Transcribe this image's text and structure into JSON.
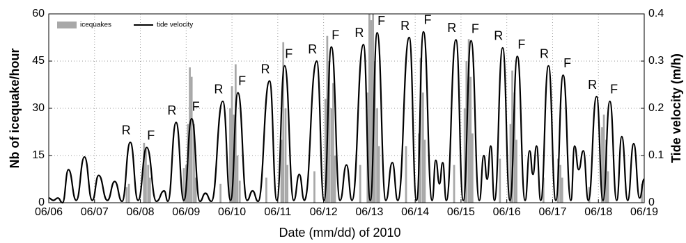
{
  "chart_data": {
    "type": "bar-line",
    "xlabel": "Date (mm/dd) of 2010",
    "ylabel": "Nb of icequake/hour",
    "y2label": "Tide velocity (m/h)",
    "xlim": [
      0,
      13
    ],
    "xticks": [
      {
        "value": 0,
        "label": "06/06"
      },
      {
        "value": 1,
        "label": "06/07"
      },
      {
        "value": 2,
        "label": "06/08"
      },
      {
        "value": 3,
        "label": "06/09"
      },
      {
        "value": 4,
        "label": "06/10"
      },
      {
        "value": 5,
        "label": "06/11"
      },
      {
        "value": 6,
        "label": "06/12"
      },
      {
        "value": 7,
        "label": "06/13"
      },
      {
        "value": 8,
        "label": "06/14"
      },
      {
        "value": 9,
        "label": "06/15"
      },
      {
        "value": 10,
        "label": "06/16"
      },
      {
        "value": 11,
        "label": "06/17"
      },
      {
        "value": 12,
        "label": "06/18"
      },
      {
        "value": 13,
        "label": "06/19"
      }
    ],
    "ylim": [
      0,
      60
    ],
    "yticks": [
      0,
      15,
      30,
      45,
      60
    ],
    "y2lim": [
      0,
      0.4
    ],
    "y2ticks": [
      0,
      0.1,
      0.2,
      0.3,
      0.4
    ],
    "grid": true,
    "legend": "upper left",
    "series": [
      {
        "name": "icequakes",
        "type": "bar",
        "color": "#a8a8a8",
        "x": [
          1.7,
          1.75,
          2.08,
          2.12,
          2.17,
          2.21,
          2.95,
          3.0,
          3.04,
          3.08,
          3.12,
          3.17,
          3.21,
          3.75,
          3.96,
          4.0,
          4.04,
          4.08,
          4.12,
          4.17,
          4.75,
          5.08,
          5.12,
          5.17,
          5.21,
          5.8,
          6.04,
          6.08,
          6.12,
          6.17,
          6.21,
          6.25,
          6.8,
          6.96,
          7.0,
          7.04,
          7.08,
          7.12,
          7.17,
          7.21,
          7.8,
          8.08,
          8.12,
          8.17,
          8.21,
          8.85,
          9.08,
          9.12,
          9.17,
          9.21,
          9.25,
          9.85,
          10.08,
          10.12,
          10.17,
          10.21,
          10.8,
          11.12,
          11.17,
          11.21,
          11.8,
          12.08,
          12.12,
          12.17,
          12.21,
          12.95
        ],
        "values": [
          5,
          6,
          19,
          17,
          12,
          8,
          11,
          12,
          25,
          43,
          40,
          25,
          8,
          6,
          30,
          37,
          28,
          44,
          15,
          7,
          8,
          20,
          51,
          30,
          12,
          10,
          33,
          53,
          45,
          30,
          38,
          15,
          12,
          35,
          60,
          58,
          60,
          45,
          30,
          18,
          18,
          22,
          46,
          35,
          20,
          12,
          30,
          45,
          52,
          40,
          22,
          14,
          25,
          42,
          35,
          20,
          8,
          14,
          12,
          8,
          5,
          24,
          28,
          20,
          10,
          6
        ]
      },
      {
        "name": "tide velocity",
        "type": "line",
        "axis": "y2",
        "color": "#000000",
        "x": [
          0,
          0.1,
          0.2,
          0.3,
          0.43,
          0.6,
          0.78,
          0.95,
          1.09,
          1.28,
          1.44,
          1.6,
          1.78,
          1.95,
          2.14,
          2.35,
          2.52,
          2.6,
          2.78,
          2.95,
          3.12,
          3.3,
          3.42,
          3.55,
          3.8,
          3.97,
          4.13,
          4.33,
          4.45,
          4.57,
          4.82,
          4.98,
          5.15,
          5.35,
          5.47,
          5.58,
          5.85,
          6.01,
          6.17,
          6.36,
          6.5,
          6.62,
          6.87,
          7.02,
          7.17,
          7.36,
          7.5,
          7.62,
          7.87,
          8.03,
          8.18,
          8.37,
          8.45,
          8.53,
          8.6,
          8.68,
          8.89,
          9.05,
          9.22,
          9.4,
          9.5,
          9.57,
          9.65,
          9.73,
          9.91,
          10.07,
          10.23,
          10.4,
          10.5,
          10.57,
          10.65,
          10.74,
          10.91,
          11.07,
          11.23,
          11.4,
          11.48,
          11.57,
          11.67,
          11.78,
          11.96,
          12.1,
          12.25,
          12.4,
          12.51,
          12.64,
          12.77,
          12.9,
          13
        ],
        "values": [
          0.01,
          0.005,
          0.01,
          0.0,
          0.07,
          0.005,
          0.097,
          0.005,
          0.058,
          0.005,
          0.045,
          0.003,
          0.128,
          0.005,
          0.117,
          0.003,
          0.025,
          0.003,
          0.17,
          0.005,
          0.178,
          0.003,
          0.02,
          0.003,
          0.215,
          0.005,
          0.233,
          0.005,
          0.025,
          0.003,
          0.258,
          0.005,
          0.29,
          0.005,
          0.06,
          0.005,
          0.3,
          0.005,
          0.33,
          0.005,
          0.08,
          0.005,
          0.335,
          0.005,
          0.36,
          0.005,
          0.085,
          0.005,
          0.35,
          0.005,
          0.362,
          0.005,
          0.09,
          0.04,
          0.085,
          0.005,
          0.345,
          0.005,
          0.343,
          0.005,
          0.1,
          0.05,
          0.12,
          0.005,
          0.328,
          0.005,
          0.31,
          0.005,
          0.11,
          0.06,
          0.12,
          0.005,
          0.29,
          0.005,
          0.27,
          0.005,
          0.12,
          0.07,
          0.11,
          0.005,
          0.225,
          0.005,
          0.215,
          0.005,
          0.14,
          0.005,
          0.125,
          0.01,
          0.05
        ]
      }
    ],
    "annotations": [
      {
        "text": "R",
        "x": 1.78
      },
      {
        "text": "F",
        "x": 2.14
      },
      {
        "text": "R",
        "x": 2.78
      },
      {
        "text": "F",
        "x": 3.12
      },
      {
        "text": "R",
        "x": 3.8
      },
      {
        "text": "F",
        "x": 4.13
      },
      {
        "text": "R",
        "x": 4.82
      },
      {
        "text": "F",
        "x": 5.15
      },
      {
        "text": "R",
        "x": 5.85
      },
      {
        "text": "F",
        "x": 6.17
      },
      {
        "text": "R",
        "x": 6.87
      },
      {
        "text": "F",
        "x": 7.17
      },
      {
        "text": "R",
        "x": 7.87
      },
      {
        "text": "F",
        "x": 8.18
      },
      {
        "text": "R",
        "x": 8.89
      },
      {
        "text": "F",
        "x": 9.22
      },
      {
        "text": "R",
        "x": 9.91
      },
      {
        "text": "F",
        "x": 10.23
      },
      {
        "text": "R",
        "x": 10.91
      },
      {
        "text": "F",
        "x": 11.23
      },
      {
        "text": "R",
        "x": 11.96
      },
      {
        "text": "F",
        "x": 12.25
      }
    ]
  }
}
